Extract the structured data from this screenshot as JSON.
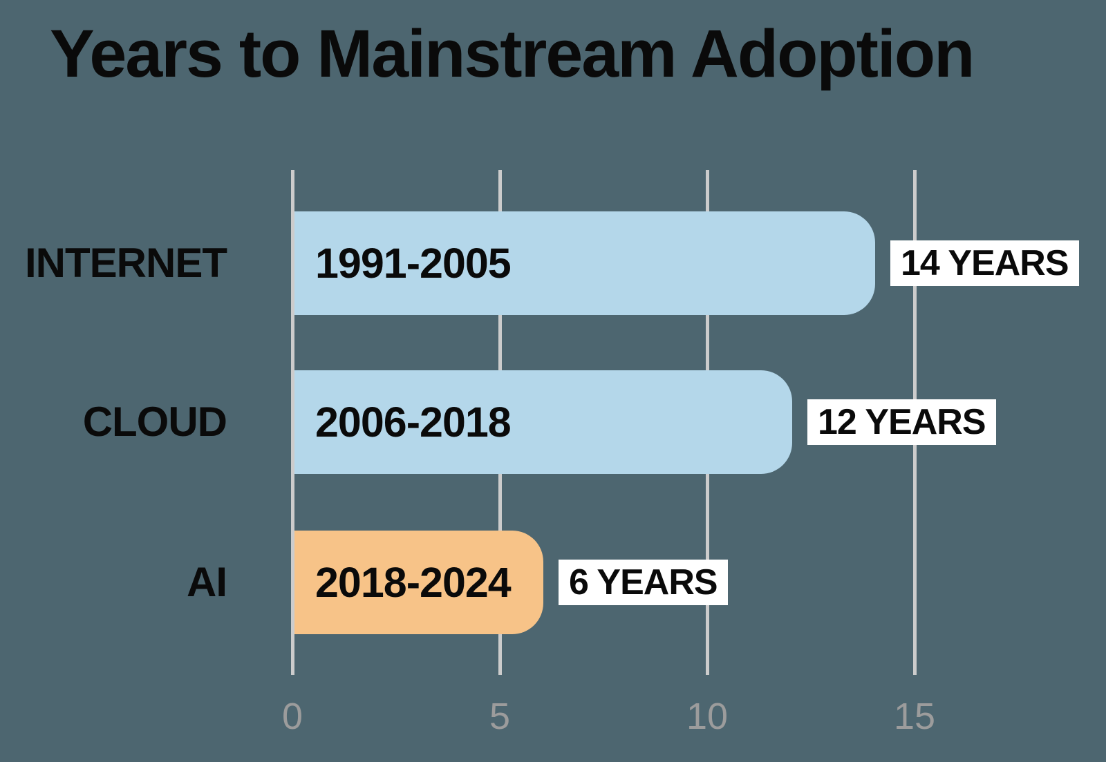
{
  "title": "Years to Mainstream Adoption",
  "colors": {
    "background": "#4d6670",
    "bar_blue": "#b4d7ea",
    "bar_orange": "#f7c388",
    "gridline": "#cccccc",
    "tick_text": "#9c9c9c",
    "value_box_bg": "#ffffff",
    "text": "#0a0a0a"
  },
  "chart_data": {
    "type": "bar",
    "orientation": "horizontal",
    "title": "Years to Mainstream Adoption",
    "categories": [
      "INTERNET",
      "CLOUD",
      "AI"
    ],
    "values": [
      14,
      12,
      6
    ],
    "rows": [
      {
        "category": "INTERNET",
        "period": "1991-2005",
        "value": 14,
        "value_label": "14 YEARS",
        "color": "#b4d7ea"
      },
      {
        "category": "CLOUD",
        "period": "2006-2018",
        "value": 12,
        "value_label": "12 YEARS",
        "color": "#b4d7ea"
      },
      {
        "category": "AI",
        "period": "2018-2024",
        "value": 6,
        "value_label": "6 YEARS",
        "color": "#f7c388"
      }
    ],
    "xlabel": "",
    "ylabel": "",
    "x_ticks": [
      0,
      5,
      10,
      15
    ],
    "xlim": [
      0,
      15
    ],
    "grid": true,
    "legend": false
  }
}
